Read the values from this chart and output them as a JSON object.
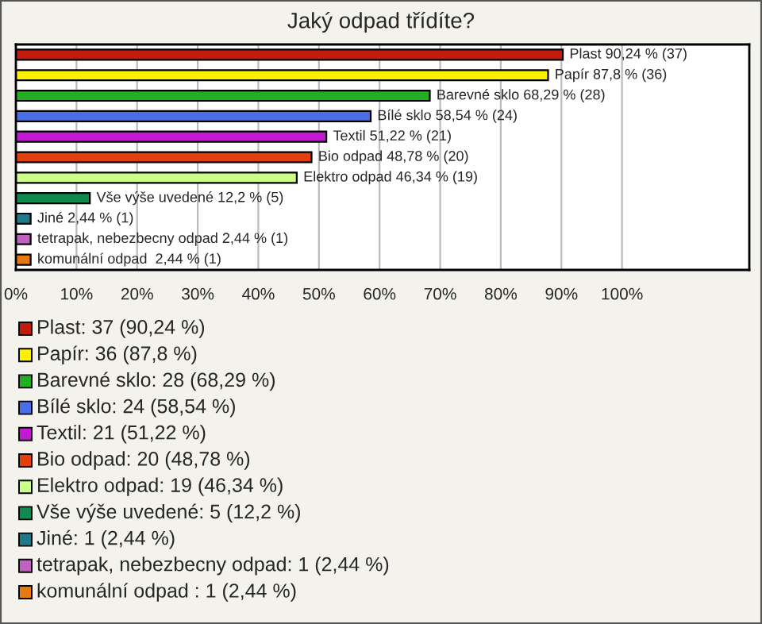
{
  "chart_data": {
    "type": "bar",
    "orientation": "horizontal",
    "title": "Jaký odpad třídíte?",
    "categories": [
      null,
      null,
      null,
      null,
      null,
      null,
      null,
      null,
      null,
      null,
      null
    ],
    "values": [
      90.24,
      87.8,
      68.29,
      58.54,
      51.22,
      48.78,
      46.34,
      12.2,
      2.44,
      2.44,
      2.44
    ],
    "colors": [
      "#c41a0c",
      "#fff000",
      "#22b022",
      "#4a6ee8",
      "#c21ad0",
      "#e4400e",
      "#ccff8a",
      "#0e8a50",
      "#1e7a8a",
      "#c060c0",
      "#e47a10"
    ],
    "value_labels": [
      "Plast 90,24 % (37)",
      "Papír 87,8 % (36)",
      "Barevné sklo 68,29 % (28)",
      "Bílé sklo 58,54 % (24)",
      "Textil 51,22 % (21)",
      "Bio odpad 48,78 % (20)",
      "Elektro odpad 46,34 % (19)",
      "Vše výše uvedené 12,2 % (5)",
      "Jiné 2,44 % (1)",
      "tetrapak, nebezbecny odpad 2,44 % (1)",
      "komunální odpad  2,44 % (1)"
    ],
    "xlim": [
      0,
      121
    ],
    "xticks": [
      {
        "value": 0,
        "label": "0%"
      },
      {
        "value": 10,
        "label": "10%"
      },
      {
        "value": 20,
        "label": "20%"
      },
      {
        "value": 30,
        "label": "30%"
      },
      {
        "value": 40,
        "label": "40%"
      },
      {
        "value": 50,
        "label": "50%"
      },
      {
        "value": 60,
        "label": "60%"
      },
      {
        "value": 70,
        "label": "70%"
      },
      {
        "value": 80,
        "label": "80%"
      },
      {
        "value": 90,
        "label": "90%"
      },
      {
        "value": 100,
        "label": "100%"
      }
    ],
    "grid": "x",
    "annotations": [
      "Plast: 37 (90,24 %)",
      "Papír: 36 (87,8 %)",
      "Barevné sklo: 28 (68,29 %)",
      "Bílé sklo: 24 (58,54 %)",
      "Textil: 21 (51,22 %)",
      "Bio odpad: 20 (48,78 %)",
      "Elektro odpad: 19 (46,34 %)",
      "Vše výše uvedené: 5 (12,2 %)",
      "Jiné: 1 (2,44 %)",
      "tetrapak, nebezbecny odpad: 1 (2,44 %)",
      "komunální odpad : 1 (2,44 %)"
    ]
  }
}
